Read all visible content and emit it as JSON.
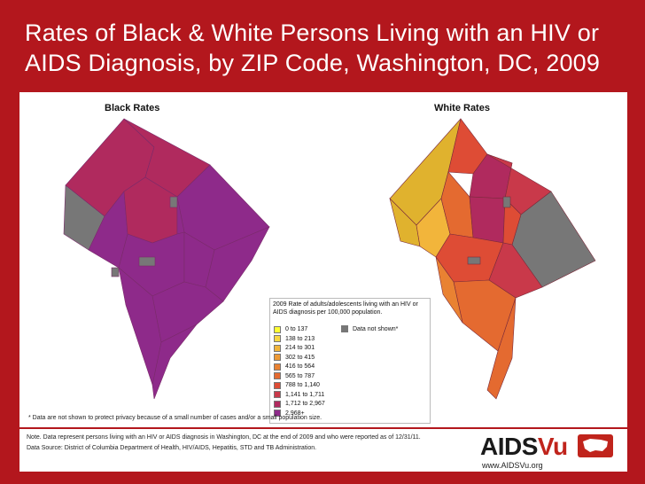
{
  "title": "Rates of Black & White Persons Living with an HIV or AIDS Diagnosis, by ZIP Code, Washington, DC, 2009",
  "maps": {
    "left_label": "Black Rates",
    "right_label": "White Rates"
  },
  "legend": {
    "title": "2009 Rate of adults/adolescents living with an HIV or AIDS diagnosis per 100,000 population.",
    "classes": [
      {
        "label": "0 to 137",
        "color": "#ffff33"
      },
      {
        "label": "138 to 213",
        "color": "#f7d742"
      },
      {
        "label": "214 to 301",
        "color": "#f2b53b"
      },
      {
        "label": "302 to 415",
        "color": "#ee9a35"
      },
      {
        "label": "416 to 564",
        "color": "#e98232"
      },
      {
        "label": "565 to 787",
        "color": "#e46a30"
      },
      {
        "label": "788 to 1,140",
        "color": "#de4c35"
      },
      {
        "label": "1,141 to 1,711",
        "color": "#c9394a"
      },
      {
        "label": "1,712 to 2,967",
        "color": "#b02a5e"
      },
      {
        "label": "2,968+",
        "color": "#8e2a8a"
      }
    ],
    "not_shown_label": "Data not shown*",
    "not_shown_color": "#777777"
  },
  "footnote": "* Data are not shown to protect privacy because of a small number of cases and/or a small population size.",
  "note": "Note. Data represent persons living with an HIV or AIDS diagnosis in Washington, DC at the end of 2009 and who were reported as of 12/31/11.",
  "source": "Data Source: District of Columbia Department of Health, HIV/AIDS, Hepatitis, STD and TB Administration.",
  "logo": {
    "aids": "AIDS",
    "vu": "Vu",
    "url": "www.AIDSVu.org"
  }
}
